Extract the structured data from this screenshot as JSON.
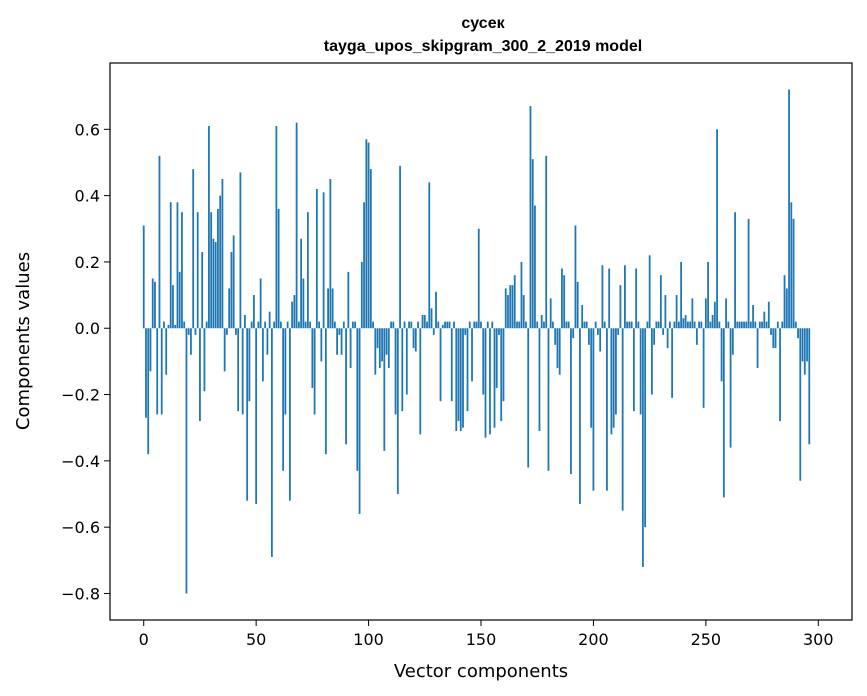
{
  "chart_data": {
    "type": "bar",
    "title_line1": "сусек",
    "title_line2": "tayga_upos_skipgram_300_2_2019 model",
    "xlabel": "Vector components",
    "ylabel": "Components values",
    "xlim": [
      -15,
      315
    ],
    "ylim": [
      -0.88,
      0.8
    ],
    "xticks": [
      0,
      50,
      100,
      150,
      200,
      250,
      300
    ],
    "xtick_labels": [
      "0",
      "50",
      "100",
      "150",
      "200",
      "250",
      "300"
    ],
    "yticks": [
      -0.8,
      -0.6,
      -0.4,
      -0.2,
      0.0,
      0.2,
      0.4,
      0.6
    ],
    "ytick_labels": [
      "−0.8",
      "−0.6",
      "−0.4",
      "−0.2",
      "0.0",
      "0.2",
      "0.4",
      "0.6"
    ],
    "bar_color": "#1f77b4",
    "grid": false,
    "values": [
      0.31,
      -0.27,
      -0.38,
      -0.13,
      0.15,
      0.14,
      -0.26,
      0.52,
      -0.26,
      0.02,
      -0.14,
      0.01,
      0.38,
      0.13,
      0.01,
      0.38,
      0.17,
      0.35,
      0.02,
      -0.8,
      -0.02,
      -0.08,
      0.48,
      -0.02,
      0.35,
      -0.28,
      0.23,
      -0.19,
      0.02,
      0.61,
      0.35,
      0.27,
      0.26,
      0.36,
      0.4,
      0.45,
      -0.13,
      -0.02,
      0.12,
      0.23,
      0.28,
      -0.02,
      -0.25,
      0.47,
      -0.26,
      0.04,
      -0.52,
      -0.22,
      0.02,
      0.1,
      -0.53,
      0.02,
      0.15,
      -0.16,
      0.02,
      -0.08,
      0.05,
      -0.69,
      0.02,
      0.61,
      0.36,
      0.02,
      -0.43,
      -0.26,
      0.02,
      -0.52,
      0.08,
      0.1,
      0.62,
      0.02,
      0.27,
      0.15,
      0.02,
      0.35,
      0.02,
      -0.18,
      -0.26,
      0.42,
      0.02,
      -0.1,
      0.41,
      -0.38,
      0.12,
      0.45,
      0.12,
      0.02,
      -0.08,
      -0.02,
      -0.08,
      0.02,
      -0.35,
      0.17,
      -0.12,
      0.02,
      0.02,
      -0.43,
      -0.56,
      0.2,
      0.38,
      0.57,
      0.56,
      0.48,
      0.02,
      -0.14,
      -0.06,
      -0.12,
      -0.1,
      -0.37,
      -0.08,
      -0.12,
      0.02,
      0.02,
      -0.26,
      -0.5,
      0.49,
      -0.25,
      0.02,
      -0.2,
      0.02,
      0.02,
      -0.06,
      -0.07,
      0.02,
      -0.32,
      0.04,
      0.04,
      0.02,
      0.44,
      0.06,
      -0.02,
      0.11,
      0.02,
      -0.22,
      0.01,
      0.02,
      0.02,
      0.02,
      -0.22,
      0.02,
      -0.31,
      -0.28,
      -0.31,
      -0.3,
      -0.02,
      -0.25,
      0.02,
      -0.16,
      0.02,
      0.02,
      0.3,
      0.02,
      -0.2,
      -0.33,
      0.02,
      -0.32,
      0.02,
      -0.3,
      -0.18,
      -0.02,
      -0.28,
      -0.22,
      0.12,
      0.1,
      0.13,
      0.13,
      0.16,
      0.02,
      0.02,
      0.2,
      0.1,
      0.02,
      -0.42,
      0.67,
      0.51,
      0.37,
      0.02,
      -0.31,
      0.04,
      0.02,
      0.52,
      -0.43,
      0.09,
      0.02,
      -0.05,
      -0.12,
      -0.14,
      0.18,
      0.16,
      0.02,
      0.02,
      -0.44,
      -0.03,
      0.31,
      0.14,
      -0.53,
      0.07,
      0.02,
      0.02,
      -0.05,
      -0.3,
      -0.49,
      0.02,
      -0.02,
      -0.07,
      0.19,
      0.02,
      -0.49,
      0.18,
      -0.32,
      -0.3,
      -0.26,
      -0.02,
      0.13,
      -0.55,
      0.19,
      0.02,
      0.02,
      0.02,
      -0.25,
      0.18,
      0.02,
      -0.26,
      -0.72,
      -0.6,
      0.02,
      0.22,
      -0.2,
      -0.05,
      0.02,
      0.02,
      0.16,
      -0.02,
      0.1,
      -0.06,
      0.02,
      -0.21,
      0.02,
      0.1,
      0.02,
      0.2,
      0.03,
      0.04,
      0.02,
      0.02,
      0.09,
      0.02,
      -0.05,
      0.02,
      0.02,
      -0.24,
      0.09,
      0.2,
      0.02,
      0.04,
      0.08,
      0.6,
      0.02,
      -0.16,
      -0.51,
      0.09,
      0.02,
      -0.36,
      -0.08,
      0.35,
      0.02,
      0.02,
      0.02,
      0.02,
      0.02,
      0.33,
      0.02,
      0.07,
      0.02,
      -0.12,
      0.02,
      0.02,
      0.05,
      0.02,
      0.08,
      -0.02,
      -0.06,
      -0.06,
      0.02,
      -0.28,
      0.02,
      0.16,
      0.12,
      0.72,
      0.38,
      0.33,
      0.02,
      -0.03,
      -0.46,
      -0.1,
      -0.14,
      -0.1,
      -0.35
    ]
  }
}
